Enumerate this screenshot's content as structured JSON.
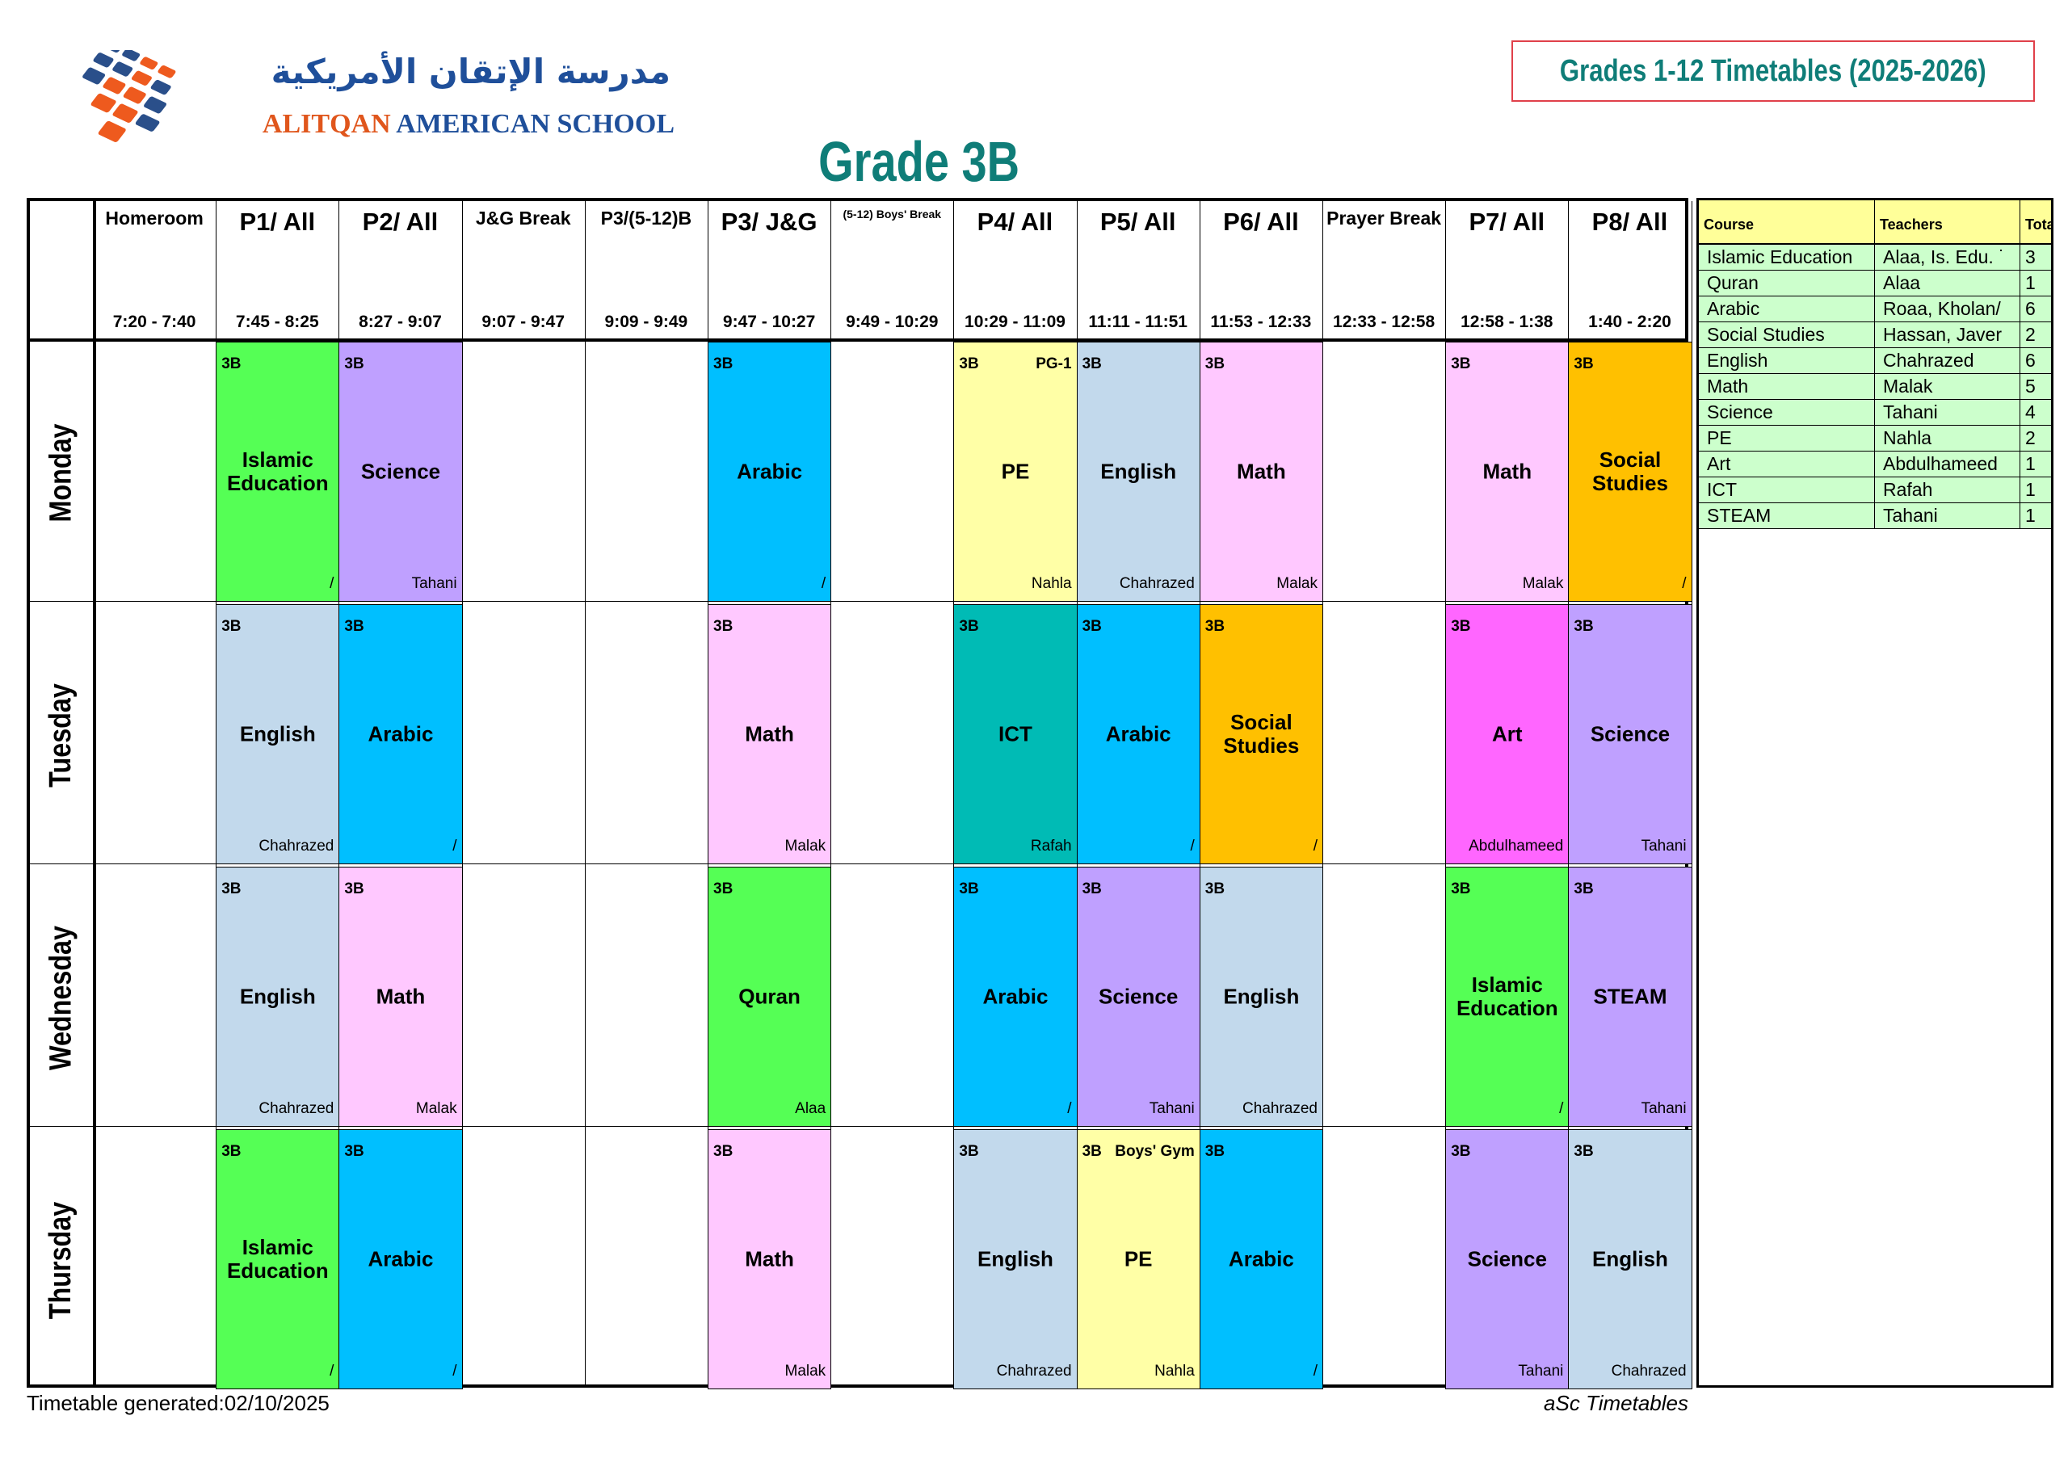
{
  "school": {
    "arabic_name": "مدرسة الإتقان الأمريكية",
    "english_name_part1": "ALITQAN",
    "english_name_part2": "AMERICAN SCHOOL"
  },
  "top_box_title": "Grades 1-12 Timetables (2025-2026)",
  "grade_title": "Grade 3B",
  "colors": {
    "teal_title": "#0f7d78",
    "Islamic Education": "#55ff55",
    "Quran": "#55ff55",
    "Science": "#bfa0ff",
    "STEAM": "#bfa0ff",
    "Arabic": "#00bfff",
    "PE": "#ffffa6",
    "English": "#c2d9ec",
    "Math": "#ffc8ff",
    "Social Studies": "#ffc000",
    "ICT": "#00bbb5",
    "Art": "#ff66ff"
  },
  "periods": [
    {
      "label": "Homeroom",
      "time": "7:20 - 7:40",
      "size": "small"
    },
    {
      "label": "P1/ All",
      "time": "7:45 - 8:25",
      "size": "big"
    },
    {
      "label": "P2/ All",
      "time": "8:27 - 9:07",
      "size": "big"
    },
    {
      "label": "J&G Break",
      "time": "9:07 - 9:47",
      "size": "small"
    },
    {
      "label": "P3/(5-12)B",
      "time": "9:09 - 9:49",
      "size": "small"
    },
    {
      "label": "P3/ J&G",
      "time": "9:47 - 10:27",
      "size": "big"
    },
    {
      "label": "(5-12) Boys' Break",
      "time": "9:49 - 10:29",
      "size": "tiny"
    },
    {
      "label": "P4/ All",
      "time": "10:29 - 11:09",
      "size": "big"
    },
    {
      "label": "P5/ All",
      "time": "11:11 - 11:51",
      "size": "big"
    },
    {
      "label": "P6/ All",
      "time": "11:53 - 12:33",
      "size": "big"
    },
    {
      "label": "Prayer Break",
      "time": "12:33 - 12:58",
      "size": "small"
    },
    {
      "label": "P7/ All",
      "time": "12:58 - 1:38",
      "size": "big"
    },
    {
      "label": "P8/ All",
      "time": "1:40 - 2:20",
      "size": "big"
    }
  ],
  "days": [
    {
      "name": "Monday",
      "lessons": [
        {
          "col": 1,
          "class": "3B",
          "subject": "Islamic Education",
          "teacher": "/"
        },
        {
          "col": 2,
          "class": "3B",
          "subject": "Science",
          "teacher": "Tahani"
        },
        {
          "col": 5,
          "class": "3B",
          "subject": "Arabic",
          "teacher": "/"
        },
        {
          "col": 7,
          "class": "3B",
          "room": "PG-1",
          "subject": "PE",
          "teacher": "Nahla"
        },
        {
          "col": 8,
          "class": "3B",
          "subject": "English",
          "teacher": "Chahrazed"
        },
        {
          "col": 9,
          "class": "3B",
          "subject": "Math",
          "teacher": "Malak"
        },
        {
          "col": 11,
          "class": "3B",
          "subject": "Math",
          "teacher": "Malak"
        },
        {
          "col": 12,
          "class": "3B",
          "subject": "Social Studies",
          "teacher": "/"
        }
      ]
    },
    {
      "name": "Tuesday",
      "lessons": [
        {
          "col": 1,
          "class": "3B",
          "subject": "English",
          "teacher": "Chahrazed"
        },
        {
          "col": 2,
          "class": "3B",
          "subject": "Arabic",
          "teacher": "/"
        },
        {
          "col": 5,
          "class": "3B",
          "subject": "Math",
          "teacher": "Malak"
        },
        {
          "col": 7,
          "class": "3B",
          "subject": "ICT",
          "teacher": "Rafah"
        },
        {
          "col": 8,
          "class": "3B",
          "subject": "Arabic",
          "teacher": "/"
        },
        {
          "col": 9,
          "class": "3B",
          "subject": "Social Studies",
          "teacher": "/"
        },
        {
          "col": 11,
          "class": "3B",
          "subject": "Art",
          "teacher": "Abdulhameed"
        },
        {
          "col": 12,
          "class": "3B",
          "subject": "Science",
          "teacher": "Tahani"
        }
      ]
    },
    {
      "name": "Wednesday",
      "lessons": [
        {
          "col": 1,
          "class": "3B",
          "subject": "English",
          "teacher": "Chahrazed"
        },
        {
          "col": 2,
          "class": "3B",
          "subject": "Math",
          "teacher": "Malak"
        },
        {
          "col": 5,
          "class": "3B",
          "subject": "Quran",
          "teacher": "Alaa"
        },
        {
          "col": 7,
          "class": "3B",
          "subject": "Arabic",
          "teacher": "/"
        },
        {
          "col": 8,
          "class": "3B",
          "subject": "Science",
          "teacher": "Tahani"
        },
        {
          "col": 9,
          "class": "3B",
          "subject": "English",
          "teacher": "Chahrazed"
        },
        {
          "col": 11,
          "class": "3B",
          "subject": "Islamic Education",
          "teacher": "/"
        },
        {
          "col": 12,
          "class": "3B",
          "subject": "STEAM",
          "teacher": "Tahani"
        }
      ]
    },
    {
      "name": "Thursday",
      "lessons": [
        {
          "col": 1,
          "class": "3B",
          "subject": "Islamic Education",
          "teacher": "/"
        },
        {
          "col": 2,
          "class": "3B",
          "subject": "Arabic",
          "teacher": "/"
        },
        {
          "col": 5,
          "class": "3B",
          "subject": "Math",
          "teacher": "Malak"
        },
        {
          "col": 7,
          "class": "3B",
          "subject": "English",
          "teacher": "Chahrazed"
        },
        {
          "col": 8,
          "class": "3B",
          "room": "Boys' Gym",
          "subject": "PE",
          "teacher": "Nahla"
        },
        {
          "col": 9,
          "class": "3B",
          "subject": "Arabic",
          "teacher": "/"
        },
        {
          "col": 11,
          "class": "3B",
          "subject": "Science",
          "teacher": "Tahani"
        },
        {
          "col": 12,
          "class": "3B",
          "subject": "English",
          "teacher": "Chahrazed"
        }
      ]
    }
  ],
  "summary": {
    "headers": [
      "Course",
      "Teachers",
      "Tota"
    ],
    "rows": [
      [
        "Islamic Education",
        "Alaa, Is. Edu. ˙",
        "3"
      ],
      [
        "Quran",
        "Alaa",
        "1"
      ],
      [
        "Arabic",
        "Roaa, Kholan/",
        "6"
      ],
      [
        "Social Studies",
        "Hassan, Javer",
        "2"
      ],
      [
        "English",
        "Chahrazed",
        "6"
      ],
      [
        "Math",
        "Malak",
        "5"
      ],
      [
        "Science",
        "Tahani",
        "4"
      ],
      [
        "PE",
        "Nahla",
        "2"
      ],
      [
        "Art",
        "Abdulhameed",
        "1"
      ],
      [
        "ICT",
        "Rafah",
        "1"
      ],
      [
        "STEAM",
        "Tahani",
        "1"
      ]
    ]
  },
  "footer": {
    "generated": "Timetable generated:02/10/2025",
    "brand": "aSc Timetables"
  }
}
